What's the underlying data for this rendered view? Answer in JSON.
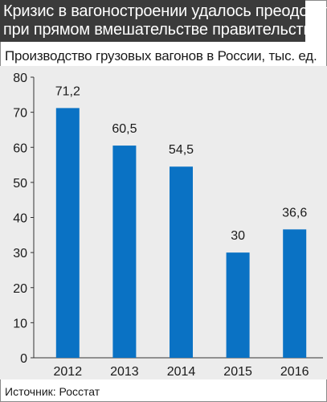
{
  "title_lines": [
    "Кризис в вагоностроении удалось преодолеть",
    "при прямом вмешательстве правительства"
  ],
  "subtitle": "Производство грузовых вагонов в России, тыс. ед.",
  "source": "Источник: Росстат",
  "colors": {
    "bar": "#0a72c4",
    "title_bg": "#3b3b3b",
    "chart_bg": "#ececec",
    "axis": "#333333"
  },
  "chart_data": {
    "type": "bar",
    "categories": [
      "2012",
      "2013",
      "2014",
      "2015",
      "2016"
    ],
    "values": [
      71.2,
      60.5,
      54.5,
      30,
      36.6
    ],
    "value_labels": [
      "71,2",
      "60,5",
      "54,5",
      "30",
      "36,6"
    ],
    "yticks": [
      0,
      10,
      20,
      30,
      40,
      50,
      60,
      70,
      80
    ],
    "ylim": [
      0,
      80
    ],
    "title": "Производство грузовых вагонов в России, тыс. ед.",
    "xlabel": "",
    "ylabel": "",
    "grid": false,
    "legend": "none"
  }
}
